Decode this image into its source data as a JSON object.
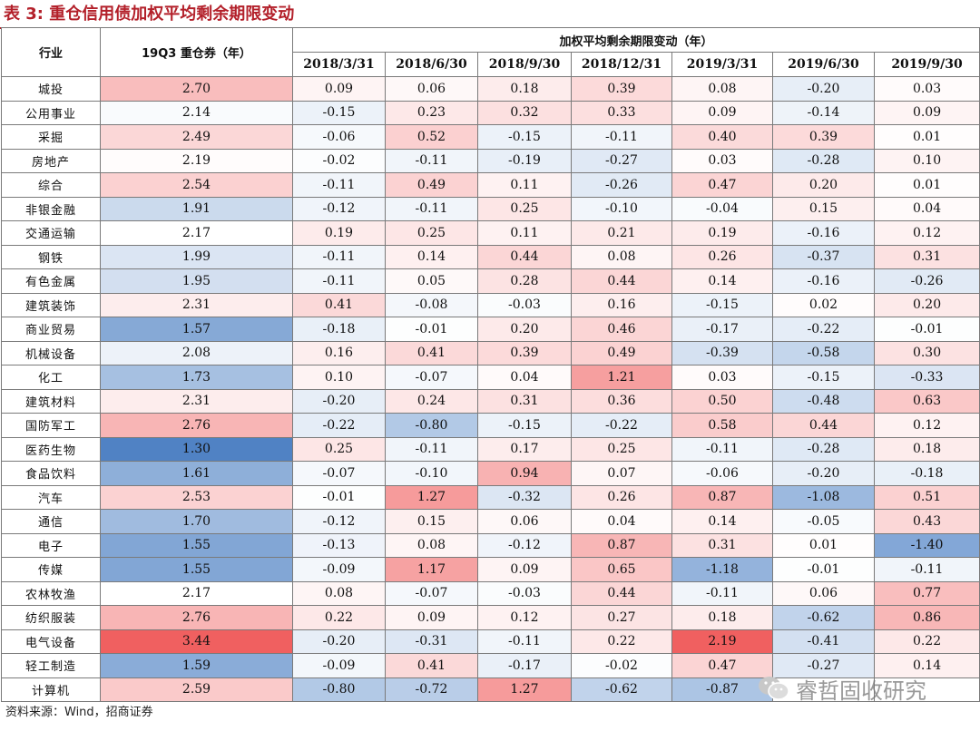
{
  "title": "表 3:  重仓信用债加权平均剩余期限变动",
  "header": {
    "industry": "行业",
    "holding": "19Q3 重仓券（年）",
    "group": "加权平均剩余期限变动（年）",
    "dates": [
      "2018/3/31",
      "2018/6/30",
      "2018/9/30",
      "2018/12/31",
      "2019/3/31",
      "2019/6/30",
      "2019/9/30"
    ]
  },
  "rows": [
    {
      "name": "城投",
      "holding": "2.70",
      "changes": [
        "0.09",
        "0.06",
        "0.18",
        "0.39",
        "0.08",
        "-0.20",
        "0.03"
      ]
    },
    {
      "name": "公用事业",
      "holding": "2.14",
      "changes": [
        "-0.15",
        "0.23",
        "0.32",
        "0.33",
        "0.09",
        "-0.14",
        "0.09"
      ]
    },
    {
      "name": "采掘",
      "holding": "2.49",
      "changes": [
        "-0.06",
        "0.52",
        "-0.15",
        "-0.11",
        "0.40",
        "0.39",
        "0.01"
      ]
    },
    {
      "name": "房地产",
      "holding": "2.19",
      "changes": [
        "-0.02",
        "-0.11",
        "-0.19",
        "-0.27",
        "0.03",
        "-0.28",
        "0.10"
      ]
    },
    {
      "name": "综合",
      "holding": "2.54",
      "changes": [
        "-0.11",
        "0.49",
        "0.11",
        "-0.26",
        "0.47",
        "0.20",
        "0.01"
      ]
    },
    {
      "name": "非银金融",
      "holding": "1.91",
      "changes": [
        "-0.12",
        "-0.11",
        "0.25",
        "-0.10",
        "-0.04",
        "0.15",
        "0.04"
      ]
    },
    {
      "name": "交通运输",
      "holding": "2.17",
      "changes": [
        "0.19",
        "0.25",
        "0.11",
        "0.21",
        "0.19",
        "-0.16",
        "0.12"
      ]
    },
    {
      "name": "钢铁",
      "holding": "1.99",
      "changes": [
        "-0.11",
        "0.14",
        "0.44",
        "0.08",
        "0.26",
        "-0.37",
        "0.31"
      ]
    },
    {
      "name": "有色金属",
      "holding": "1.95",
      "changes": [
        "-0.11",
        "0.05",
        "0.28",
        "0.44",
        "0.14",
        "-0.16",
        "-0.26"
      ]
    },
    {
      "name": "建筑装饰",
      "holding": "2.31",
      "changes": [
        "0.41",
        "-0.08",
        "-0.03",
        "0.16",
        "-0.15",
        "0.02",
        "0.20"
      ]
    },
    {
      "name": "商业贸易",
      "holding": "1.57",
      "changes": [
        "-0.18",
        "-0.01",
        "0.20",
        "0.46",
        "-0.17",
        "-0.22",
        "-0.01"
      ]
    },
    {
      "name": "机械设备",
      "holding": "2.08",
      "changes": [
        "0.16",
        "0.41",
        "0.39",
        "0.49",
        "-0.39",
        "-0.58",
        "0.30"
      ]
    },
    {
      "name": "化工",
      "holding": "1.73",
      "changes": [
        "0.10",
        "-0.07",
        "0.04",
        "1.21",
        "0.03",
        "-0.15",
        "-0.33"
      ]
    },
    {
      "name": "建筑材料",
      "holding": "2.31",
      "changes": [
        "-0.20",
        "0.24",
        "0.31",
        "0.36",
        "0.50",
        "-0.48",
        "0.63"
      ]
    },
    {
      "name": "国防军工",
      "holding": "2.76",
      "changes": [
        "-0.22",
        "-0.80",
        "-0.15",
        "-0.22",
        "0.58",
        "0.44",
        "0.12"
      ]
    },
    {
      "name": "医药生物",
      "holding": "1.30",
      "changes": [
        "0.25",
        "-0.11",
        "0.17",
        "0.25",
        "-0.11",
        "-0.28",
        "0.18"
      ]
    },
    {
      "name": "食品饮料",
      "holding": "1.61",
      "changes": [
        "-0.07",
        "-0.10",
        "0.94",
        "0.07",
        "-0.06",
        "-0.20",
        "-0.18"
      ]
    },
    {
      "name": "汽车",
      "holding": "2.53",
      "changes": [
        "-0.01",
        "1.27",
        "-0.32",
        "0.26",
        "0.87",
        "-1.08",
        "0.51"
      ]
    },
    {
      "name": "通信",
      "holding": "1.70",
      "changes": [
        "-0.12",
        "0.15",
        "0.06",
        "0.04",
        "0.14",
        "-0.05",
        "0.43"
      ]
    },
    {
      "name": "电子",
      "holding": "1.55",
      "changes": [
        "-0.13",
        "0.08",
        "-0.12",
        "0.87",
        "0.31",
        "0.01",
        "-1.40"
      ]
    },
    {
      "name": "传媒",
      "holding": "1.55",
      "changes": [
        "-0.09",
        "1.17",
        "0.09",
        "0.65",
        "-1.18",
        "-0.01",
        "-0.11"
      ]
    },
    {
      "name": "农林牧渔",
      "holding": "2.17",
      "changes": [
        "0.08",
        "-0.07",
        "-0.03",
        "0.44",
        "-0.11",
        "0.06",
        "0.77"
      ]
    },
    {
      "name": "纺织服装",
      "holding": "2.76",
      "changes": [
        "0.22",
        "0.09",
        "0.12",
        "0.27",
        "0.18",
        "-0.62",
        "0.86"
      ]
    },
    {
      "name": "电气设备",
      "holding": "3.44",
      "changes": [
        "-0.20",
        "-0.31",
        "-0.11",
        "0.22",
        "2.19",
        "-0.41",
        "0.22"
      ]
    },
    {
      "name": "轻工制造",
      "holding": "1.59",
      "changes": [
        "-0.09",
        "0.41",
        "-0.17",
        "-0.02",
        "0.47",
        "-0.27",
        "0.14"
      ]
    },
    {
      "name": "计算机",
      "holding": "2.59",
      "changes": [
        "-0.80",
        "-0.72",
        "1.27",
        "-0.62",
        "-0.87",
        "",
        ""
      ]
    }
  ],
  "source": "资料来源：Wind，招商证券",
  "watermark": "睿哲固收研究",
  "watermark_icon": "wechat-icon",
  "colors": {
    "title": "#b3202a",
    "positive": "#f06060",
    "negative": "#4a7fc4"
  }
}
